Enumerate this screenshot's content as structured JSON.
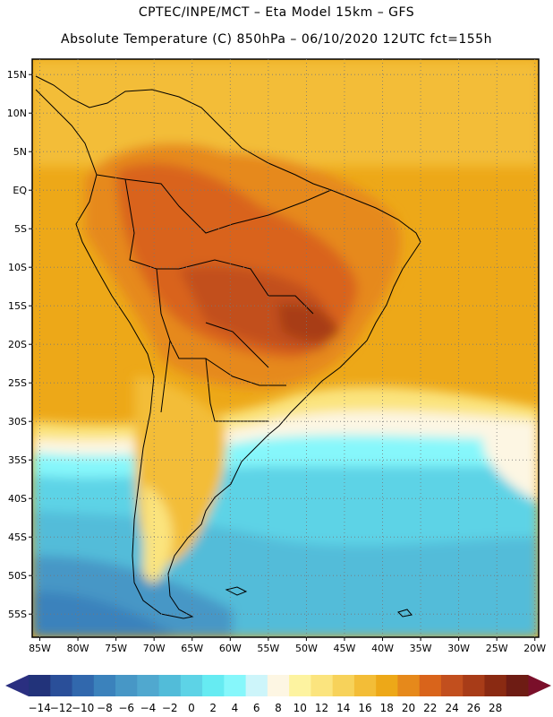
{
  "header": {
    "title_line1": "CPTEC/INPE/MCT –  Eta Model 15km – GFS",
    "title_line2": "Absolute Temperature (C) 850hPa – 06/10/2020 12UTC fct=155h"
  },
  "map": {
    "lat_labels": [
      "15N",
      "10N",
      "5N",
      "EQ",
      "5S",
      "10S",
      "15S",
      "20S",
      "25S",
      "30S",
      "35S",
      "40S",
      "45S",
      "50S",
      "55S"
    ],
    "lat_values": [
      15,
      10,
      5,
      0,
      -5,
      -10,
      -15,
      -20,
      -25,
      -30,
      -35,
      -40,
      -45,
      -50,
      -55
    ],
    "lon_labels": [
      "85W",
      "80W",
      "75W",
      "70W",
      "65W",
      "60W",
      "55W",
      "50W",
      "45W",
      "40W",
      "35W",
      "30W",
      "25W",
      "20W"
    ],
    "lon_values": [
      -85,
      -80,
      -75,
      -70,
      -65,
      -60,
      -55,
      -50,
      -45,
      -40,
      -35,
      -30,
      -25,
      -20
    ],
    "extent": {
      "lon_min": -86,
      "lon_max": -19.5,
      "lat_min": -58,
      "lat_max": 17
    }
  },
  "colorbar": {
    "labels": [
      "-14",
      "-12",
      "-10",
      "-8",
      "-6",
      "-4",
      "-2",
      "0",
      "2",
      "4",
      "6",
      "8",
      "10",
      "12",
      "14",
      "16",
      "18",
      "20",
      "22",
      "24",
      "26",
      "28"
    ],
    "colors": [
      "#22337a",
      "#2a4f99",
      "#3168ad",
      "#3b82bc",
      "#4797c6",
      "#50a8cf",
      "#52bcd9",
      "#5dd3e6",
      "#66ebf2",
      "#86f7fb",
      "#cdf5fa",
      "#fdf6e3",
      "#fdf3a0",
      "#fbe47e",
      "#f7d25a",
      "#f3bd37",
      "#eda818",
      "#e6891b",
      "#d9641b",
      "#c24f1e",
      "#a83c18",
      "#8a2a12",
      "#6e1c14"
    ],
    "left_arrow_color": "#2a2f80",
    "right_arrow_color": "#7a0f2a"
  }
}
